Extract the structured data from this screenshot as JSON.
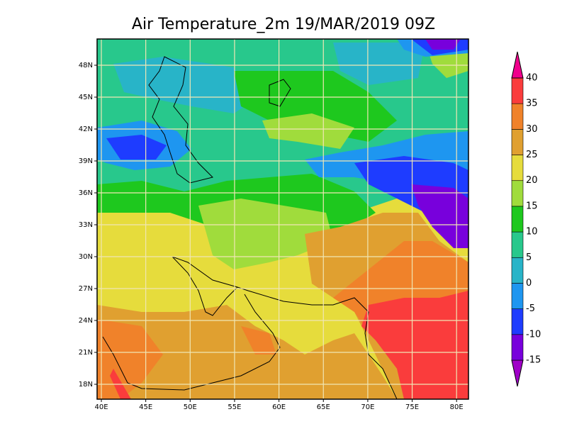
{
  "map": {
    "title": "Air Temperature_2m 19/MAR/2019 09Z",
    "lon_ticks": [
      {
        "value": 40,
        "label": "40E"
      },
      {
        "value": 45,
        "label": "45E"
      },
      {
        "value": 50,
        "label": "50E"
      },
      {
        "value": 55,
        "label": "55E"
      },
      {
        "value": 60,
        "label": "60E"
      },
      {
        "value": 65,
        "label": "65E"
      },
      {
        "value": 70,
        "label": "70E"
      },
      {
        "value": 75,
        "label": "75E"
      },
      {
        "value": 80,
        "label": "80E"
      }
    ],
    "lat_ticks": [
      {
        "value": 48,
        "label": "48N"
      },
      {
        "value": 45,
        "label": "45N"
      },
      {
        "value": 42,
        "label": "42N"
      },
      {
        "value": 39,
        "label": "39N"
      },
      {
        "value": 36,
        "label": "36N"
      },
      {
        "value": 33,
        "label": "33N"
      },
      {
        "value": 30,
        "label": "30N"
      },
      {
        "value": 27,
        "label": "27N"
      },
      {
        "value": 24,
        "label": "24N"
      },
      {
        "value": 21,
        "label": "21N"
      },
      {
        "value": 18,
        "label": "18N"
      }
    ],
    "grid": true,
    "colorbar": {
      "levels": [
        -15,
        -10,
        -5,
        0,
        5,
        10,
        15,
        20,
        25,
        30,
        35,
        40
      ],
      "colors": [
        "#a000c8",
        "#7800dc",
        "#1e3cff",
        "#1e96f0",
        "#28b4c8",
        "#28c88c",
        "#1ec81e",
        "#a0dc3c",
        "#e6dc3c",
        "#e0a030",
        "#f0822a",
        "#fa3c3c",
        "#f0008c"
      ]
    }
  }
}
